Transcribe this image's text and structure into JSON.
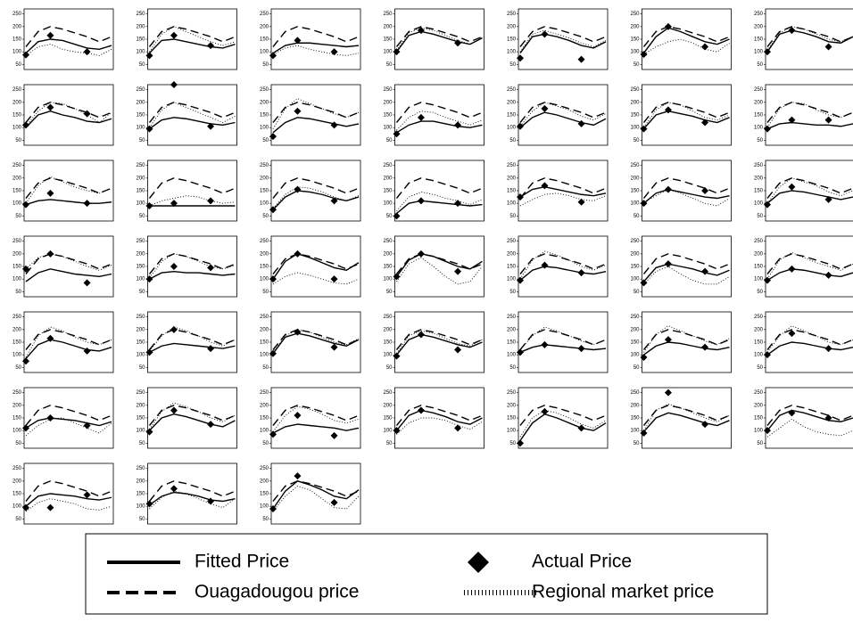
{
  "chart_data": {
    "type": "line",
    "x": [
      0,
      1,
      2,
      3,
      4,
      5,
      6,
      7
    ],
    "actual_x": [
      0,
      2,
      5
    ],
    "ylim": [
      30,
      270
    ],
    "yticks": [
      50,
      100,
      150,
      200,
      250
    ],
    "series": [
      {
        "name": "Fitted Price",
        "color": "#000000",
        "style": "solid"
      },
      {
        "name": "Actual Price",
        "color": "#000000",
        "style": "marker"
      },
      {
        "name": "Ouagadougou price",
        "color": "#000000",
        "style": "dashed",
        "values": [
          120,
          180,
          200,
          190,
          175,
          160,
          140,
          160
        ]
      },
      {
        "name": "Regional market price",
        "color": "#000000",
        "style": "dotted"
      }
    ],
    "panels": [
      {
        "fitted": [
          95,
          140,
          150,
          145,
          130,
          115,
          110,
          125
        ],
        "regional": [
          85,
          120,
          130,
          110,
          100,
          95,
          85,
          110
        ],
        "actual": [
          88,
          165,
          100
        ]
      },
      {
        "fitted": [
          95,
          145,
          150,
          140,
          130,
          120,
          115,
          130
        ],
        "regional": [
          100,
          170,
          200,
          180,
          160,
          140,
          125,
          140
        ],
        "actual": [
          85,
          165,
          125
        ]
      },
      {
        "fitted": [
          95,
          125,
          135,
          135,
          130,
          125,
          120,
          125
        ],
        "regional": [
          90,
          115,
          125,
          110,
          100,
          90,
          85,
          95
        ],
        "actual": [
          85,
          145,
          100
        ]
      },
      {
        "fitted": [
          100,
          165,
          180,
          170,
          155,
          140,
          130,
          155
        ],
        "regional": [
          105,
          175,
          195,
          185,
          165,
          145,
          130,
          155
        ],
        "actual": [
          100,
          185,
          135
        ]
      },
      {
        "fitted": [
          95,
          160,
          170,
          160,
          145,
          125,
          115,
          140
        ],
        "regional": [
          100,
          170,
          185,
          170,
          155,
          135,
          120,
          145
        ],
        "actual": [
          75,
          170,
          70
        ]
      },
      {
        "fitted": [
          95,
          160,
          195,
          180,
          160,
          140,
          130,
          150
        ],
        "regional": [
          90,
          120,
          140,
          150,
          135,
          110,
          100,
          135
        ],
        "actual": [
          90,
          200,
          120
        ]
      },
      {
        "fitted": [
          100,
          170,
          185,
          175,
          160,
          140,
          135,
          160
        ],
        "regional": [
          105,
          175,
          200,
          190,
          170,
          150,
          140,
          160
        ],
        "actual": [
          100,
          185,
          120
        ]
      },
      {
        "fitted": [
          100,
          150,
          165,
          150,
          140,
          125,
          120,
          135
        ],
        "regional": [
          105,
          165,
          200,
          195,
          175,
          150,
          120,
          160
        ],
        "actual": [
          110,
          180,
          155
        ]
      },
      {
        "fitted": [
          95,
          130,
          140,
          135,
          125,
          115,
          110,
          120
        ],
        "regional": [
          100,
          170,
          200,
          180,
          160,
          140,
          120,
          145
        ],
        "actual": [
          95,
          270,
          105
        ]
      },
      {
        "fitted": [
          80,
          120,
          140,
          135,
          125,
          115,
          105,
          115
        ],
        "regional": [
          95,
          175,
          215,
          195,
          175,
          155,
          140,
          160
        ],
        "actual": [
          65,
          165,
          110
        ]
      },
      {
        "fitted": [
          80,
          110,
          125,
          125,
          115,
          105,
          100,
          110
        ],
        "regional": [
          90,
          140,
          165,
          160,
          140,
          125,
          110,
          130
        ],
        "actual": [
          75,
          140,
          110
        ]
      },
      {
        "fitted": [
          100,
          140,
          160,
          150,
          135,
          120,
          110,
          135
        ],
        "regional": [
          105,
          165,
          200,
          185,
          170,
          145,
          130,
          155
        ],
        "actual": [
          105,
          175,
          115
        ]
      },
      {
        "fitted": [
          95,
          150,
          165,
          155,
          145,
          130,
          120,
          140
        ],
        "regional": [
          100,
          170,
          200,
          190,
          165,
          140,
          130,
          150
        ],
        "actual": [
          95,
          170,
          120
        ]
      },
      {
        "fitted": [
          95,
          115,
          120,
          115,
          110,
          110,
          105,
          115
        ],
        "regional": [
          100,
          175,
          200,
          195,
          170,
          150,
          140,
          160
        ],
        "actual": [
          95,
          130,
          130
        ]
      },
      {
        "fitted": [
          95,
          110,
          115,
          110,
          105,
          100,
          100,
          105
        ],
        "regional": [
          100,
          170,
          205,
          185,
          165,
          150,
          140,
          160
        ],
        "actual": [
          95,
          140,
          100
        ]
      },
      {
        "fitted": [
          90,
          90,
          90,
          90,
          90,
          90,
          90,
          90
        ],
        "regional": [
          90,
          110,
          120,
          130,
          125,
          110,
          100,
          105
        ],
        "actual": [
          90,
          100,
          110
        ]
      },
      {
        "fitted": [
          75,
          125,
          150,
          145,
          135,
          120,
          110,
          125
        ],
        "regional": [
          80,
          135,
          165,
          160,
          145,
          125,
          110,
          130
        ],
        "actual": [
          75,
          155,
          110
        ]
      },
      {
        "fitted": [
          60,
          100,
          110,
          105,
          100,
          95,
          90,
          95
        ],
        "regional": [
          70,
          125,
          145,
          135,
          120,
          110,
          95,
          115
        ],
        "actual": [
          50,
          110,
          100
        ]
      },
      {
        "fitted": [
          125,
          155,
          165,
          155,
          145,
          135,
          130,
          140
        ],
        "regional": [
          90,
          115,
          135,
          140,
          130,
          115,
          110,
          130
        ],
        "actual": [
          125,
          170,
          105
        ]
      },
      {
        "fitted": [
          100,
          140,
          155,
          145,
          135,
          125,
          120,
          130
        ],
        "regional": [
          105,
          130,
          155,
          140,
          120,
          100,
          90,
          120
        ],
        "actual": [
          100,
          155,
          150
        ]
      },
      {
        "fitted": [
          100,
          140,
          150,
          145,
          135,
          125,
          115,
          125
        ],
        "regional": [
          100,
          165,
          200,
          185,
          170,
          145,
          130,
          150
        ],
        "actual": [
          95,
          165,
          115
        ]
      },
      {
        "fitted": [
          90,
          125,
          140,
          130,
          120,
          115,
          110,
          120
        ],
        "regional": [
          140,
          185,
          200,
          190,
          170,
          150,
          135,
          155
        ],
        "actual": [
          140,
          200,
          85
        ]
      },
      {
        "fitted": [
          100,
          125,
          130,
          125,
          125,
          120,
          115,
          120
        ],
        "regional": [
          105,
          170,
          200,
          190,
          170,
          150,
          140,
          155
        ],
        "actual": [
          100,
          150,
          145
        ]
      },
      {
        "fitted": [
          100,
          170,
          200,
          185,
          165,
          145,
          135,
          165
        ],
        "regional": [
          80,
          110,
          125,
          115,
          100,
          85,
          80,
          100
        ],
        "actual": [
          100,
          200,
          100
        ]
      },
      {
        "fitted": [
          110,
          175,
          200,
          190,
          170,
          150,
          140,
          170
        ],
        "regional": [
          90,
          160,
          185,
          150,
          110,
          80,
          90,
          150
        ],
        "actual": [
          110,
          200,
          130
        ]
      },
      {
        "fitted": [
          95,
          135,
          150,
          145,
          135,
          125,
          120,
          130
        ],
        "regional": [
          100,
          175,
          210,
          195,
          175,
          150,
          135,
          155
        ],
        "actual": [
          95,
          155,
          125
        ]
      },
      {
        "fitted": [
          90,
          145,
          160,
          150,
          140,
          125,
          115,
          135
        ],
        "regional": [
          80,
          130,
          150,
          120,
          95,
          80,
          80,
          110
        ],
        "actual": [
          85,
          160,
          130
        ]
      },
      {
        "fitted": [
          95,
          125,
          140,
          135,
          125,
          115,
          110,
          125
        ],
        "regional": [
          100,
          175,
          205,
          185,
          165,
          150,
          135,
          160
        ],
        "actual": [
          95,
          140,
          115
        ]
      },
      {
        "fitted": [
          85,
          140,
          160,
          150,
          135,
          120,
          115,
          130
        ],
        "regional": [
          90,
          175,
          210,
          195,
          170,
          150,
          140,
          160
        ],
        "actual": [
          75,
          165,
          115
        ]
      },
      {
        "fitted": [
          110,
          135,
          145,
          140,
          135,
          130,
          125,
          135
        ],
        "regional": [
          115,
          175,
          210,
          195,
          175,
          150,
          135,
          160
        ],
        "actual": [
          110,
          200,
          125
        ]
      },
      {
        "fitted": [
          105,
          170,
          185,
          175,
          160,
          145,
          135,
          160
        ],
        "regional": [
          110,
          175,
          200,
          190,
          170,
          150,
          140,
          165
        ],
        "actual": [
          105,
          190,
          130
        ]
      },
      {
        "fitted": [
          100,
          160,
          180,
          170,
          155,
          140,
          130,
          150
        ],
        "regional": [
          105,
          175,
          195,
          185,
          165,
          145,
          135,
          160
        ],
        "actual": [
          95,
          180,
          120
        ]
      },
      {
        "fitted": [
          110,
          130,
          140,
          135,
          130,
          125,
          120,
          125
        ],
        "regional": [
          120,
          175,
          210,
          195,
          175,
          155,
          140,
          160
        ],
        "actual": [
          110,
          140,
          125
        ]
      },
      {
        "fitted": [
          100,
          135,
          150,
          145,
          135,
          125,
          120,
          130
        ],
        "regional": [
          110,
          180,
          215,
          195,
          175,
          155,
          140,
          165
        ],
        "actual": [
          90,
          160,
          130
        ]
      },
      {
        "fitted": [
          100,
          135,
          150,
          145,
          135,
          125,
          120,
          130
        ],
        "regional": [
          110,
          175,
          215,
          195,
          175,
          150,
          140,
          160
        ],
        "actual": [
          100,
          185,
          125
        ]
      },
      {
        "fitted": [
          110,
          140,
          150,
          145,
          140,
          130,
          120,
          135
        ],
        "regional": [
          80,
          120,
          145,
          150,
          130,
          110,
          90,
          130
        ],
        "actual": [
          110,
          150,
          120
        ]
      },
      {
        "fitted": [
          100,
          150,
          165,
          155,
          140,
          125,
          115,
          140
        ],
        "regional": [
          105,
          175,
          210,
          195,
          175,
          150,
          135,
          160
        ],
        "actual": [
          95,
          180,
          125
        ]
      },
      {
        "fitted": [
          90,
          115,
          125,
          120,
          115,
          110,
          100,
          110
        ],
        "regional": [
          95,
          160,
          195,
          185,
          165,
          140,
          130,
          145
        ],
        "actual": [
          85,
          160,
          80
        ]
      },
      {
        "fitted": [
          100,
          160,
          180,
          170,
          155,
          135,
          125,
          150
        ],
        "regional": [
          85,
          130,
          150,
          150,
          140,
          120,
          105,
          135
        ],
        "actual": [
          100,
          180,
          110
        ]
      },
      {
        "fitted": [
          60,
          130,
          165,
          150,
          130,
          110,
          100,
          130
        ],
        "regional": [
          75,
          150,
          180,
          170,
          150,
          125,
          110,
          140
        ],
        "actual": [
          50,
          175,
          110
        ]
      },
      {
        "fitted": [
          95,
          150,
          170,
          160,
          145,
          130,
          120,
          140
        ],
        "regional": [
          100,
          180,
          205,
          190,
          170,
          150,
          135,
          160
        ],
        "actual": [
          90,
          250,
          125
        ]
      },
      {
        "fitted": [
          100,
          160,
          180,
          170,
          155,
          140,
          135,
          150
        ],
        "regional": [
          75,
          110,
          145,
          115,
          95,
          85,
          80,
          100
        ],
        "actual": [
          100,
          170,
          150
        ]
      },
      {
        "fitted": [
          100,
          140,
          150,
          145,
          140,
          130,
          125,
          135
        ],
        "regional": [
          80,
          115,
          130,
          120,
          110,
          90,
          85,
          100
        ],
        "actual": [
          95,
          95,
          145
        ]
      },
      {
        "fitted": [
          105,
          140,
          155,
          150,
          140,
          125,
          120,
          130
        ],
        "regional": [
          90,
          135,
          160,
          150,
          130,
          110,
          95,
          130
        ],
        "actual": [
          110,
          170,
          120
        ]
      },
      {
        "fitted": [
          90,
          160,
          200,
          185,
          165,
          140,
          130,
          165
        ],
        "regional": [
          80,
          140,
          180,
          165,
          130,
          95,
          90,
          140
        ],
        "actual": [
          90,
          220,
          115
        ]
      }
    ]
  }
}
